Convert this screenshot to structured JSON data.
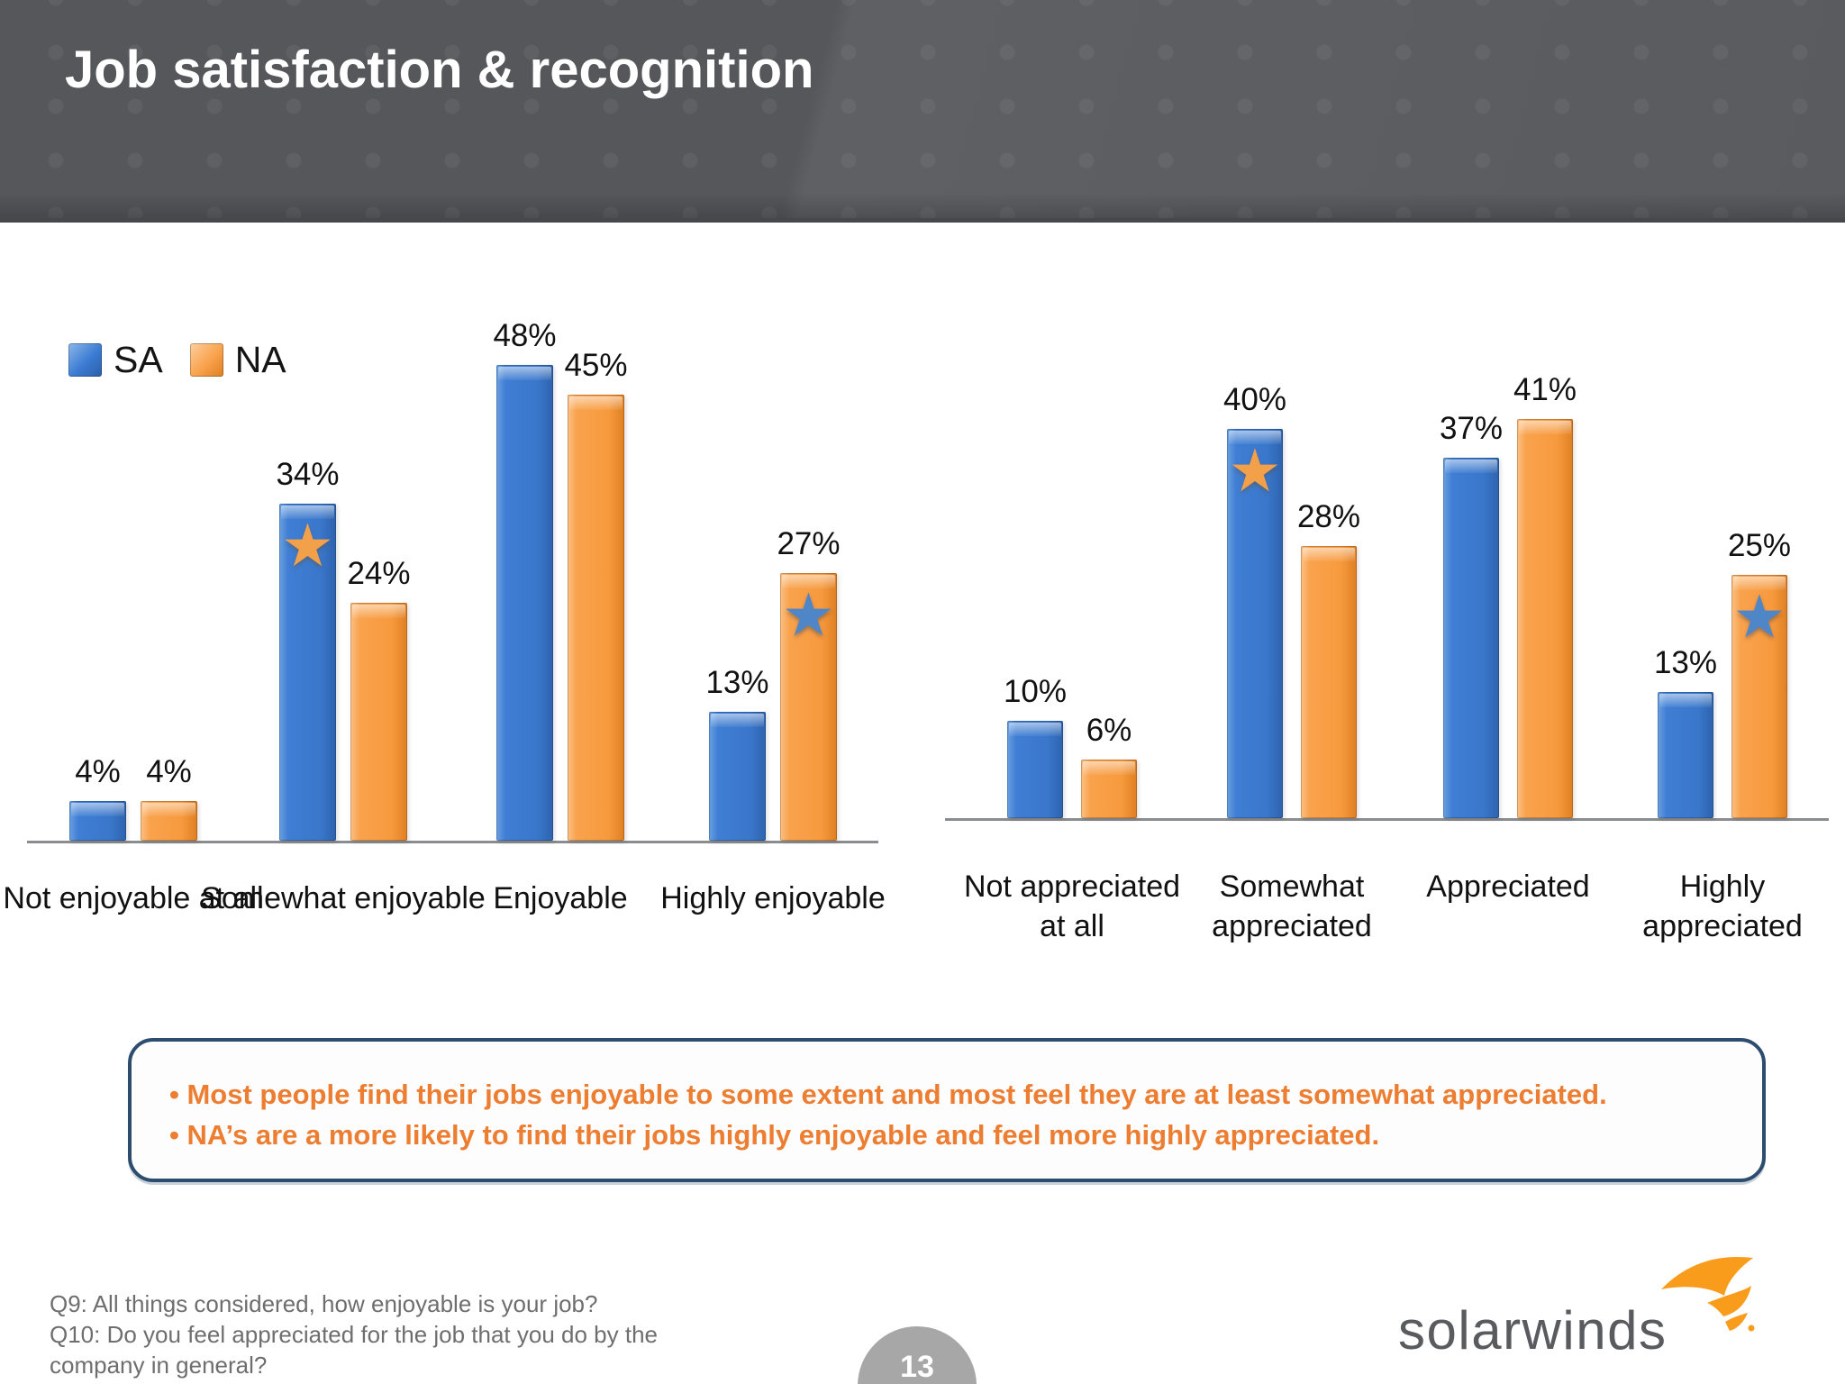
{
  "slide": {
    "title": "Job satisfaction & recognition",
    "page_number": "13",
    "footer_lines": [
      "Q9: All things considered, how enjoyable is your job?",
      "Q10: Do you feel appreciated for the job that you do by the",
      "company in general?"
    ],
    "logo_text": "solarwinds"
  },
  "legend": {
    "items": [
      {
        "label": "SA",
        "color": "#3B7BD2"
      },
      {
        "label": "NA",
        "color": "#F9A24D"
      }
    ],
    "position": "top-left"
  },
  "colors": {
    "sa_bar": "#3B7BD2",
    "na_bar": "#F9A24D",
    "star_orange": "#F2A049",
    "star_blue": "#4E86C8",
    "bullet_text": "#ED7D31",
    "header_background": "#55575B",
    "callout_border": "#2D4D6E",
    "axis": "#8A8C8E",
    "page_bubble": "#A7A7A7"
  },
  "callout": {
    "bullets": [
      "Most people find their jobs enjoyable to some extent and most feel they are at least somewhat appreciated.",
      "NA’s are a more likely  to find their jobs highly enjoyable and feel more highly appreciated."
    ]
  },
  "chart_data": [
    {
      "type": "bar",
      "title": "",
      "categories": [
        "Not enjoyable at all",
        "Somewhat enjoyable",
        "Enjoyable",
        "Highly enjoyable"
      ],
      "series": [
        {
          "name": "SA",
          "values": [
            4,
            34,
            48,
            13
          ]
        },
        {
          "name": "NA",
          "values": [
            4,
            24,
            45,
            27
          ]
        }
      ],
      "value_label_format": "percent",
      "stars": [
        {
          "category_index": 1,
          "series": "SA",
          "style": "orange"
        },
        {
          "category_index": 3,
          "series": "NA",
          "style": "blue"
        }
      ],
      "ylim": [
        0,
        50
      ],
      "gridlines": false,
      "legend_position": "top-left"
    },
    {
      "type": "bar",
      "title": "",
      "categories": [
        "Not appreciated at all",
        "Somewhat appreciated",
        "Appreciated",
        "Highly appreciated"
      ],
      "series": [
        {
          "name": "SA",
          "values": [
            10,
            40,
            37,
            13
          ]
        },
        {
          "name": "NA",
          "values": [
            6,
            28,
            41,
            25
          ]
        }
      ],
      "value_label_format": "percent",
      "stars": [
        {
          "category_index": 1,
          "series": "SA",
          "style": "orange"
        },
        {
          "category_index": 3,
          "series": "NA",
          "style": "blue"
        }
      ],
      "ylim": [
        0,
        50
      ],
      "gridlines": false,
      "legend_position": "none"
    }
  ]
}
